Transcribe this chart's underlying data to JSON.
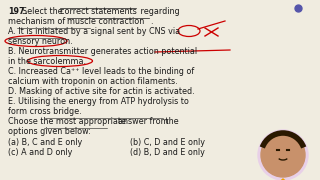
{
  "bg_color": "#f0ece0",
  "text_color": "#1a1a1a",
  "red_color": "#cc0000",
  "font_family": "DejaVu Sans",
  "font_size": 5.8,
  "title_num": "197.",
  "title_text": " Select the correct statements regarding\nmechanism of muscle contraction.",
  "optA": "A. It is initiated by a signal sent by CNS via",
  "optA2": "sensory neuron.",
  "optB": "B. Neurotransmitter generates action potential",
  "optB2": "in the sarcolemma.",
  "optC": "C. Increased Ca⁺⁺ level leads to the binding of",
  "optC2": "calcium with troponin on action filaments.",
  "optD": "D. Masking of active site for actin is activated.",
  "optE": "E. Utilising the energy from ATP hydrolysis to",
  "optE2": "form cross bridge.",
  "footer1": "Choose the most appropriate answer from the",
  "footer2": "options given below:",
  "ans_a": "(a) B, C and E only",
  "ans_b": "(b) C, D and E only",
  "ans_c": "(c) A and D only",
  "ans_d": "(d) B, D and E only",
  "profile_bg": "#e8d0e8",
  "profile_skin": "#c8916b",
  "profile_hair": "#2a1800",
  "dot_color": "#5555aa"
}
